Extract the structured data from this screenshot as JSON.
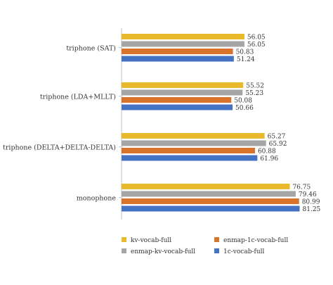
{
  "chart_data": {
    "type": "bar",
    "orientation": "horizontal",
    "categories": [
      "triphone (SAT)",
      "triphone (LDA+MLLT)",
      "triphone (DELTA+DELTA-DELTA)",
      "monophone"
    ],
    "series": [
      {
        "name": "kv-vocab-full",
        "color": "#e8b92a",
        "values": [
          56.05,
          55.52,
          65.27,
          76.75
        ]
      },
      {
        "name": "enmap-kv-vocab-full",
        "color": "#a5a5a5",
        "values": [
          56.05,
          55.23,
          65.92,
          79.46
        ]
      },
      {
        "name": "enmap-1c-vocab-full",
        "color": "#d9732b",
        "values": [
          50.83,
          50.08,
          60.88,
          80.99
        ]
      },
      {
        "name": "1c-vocab-full",
        "color": "#4472c4",
        "values": [
          51.24,
          50.66,
          61.96,
          81.25
        ]
      }
    ],
    "value_labels": [
      [
        "56.05",
        "56.05",
        "50.83",
        "51.24"
      ],
      [
        "55.52",
        "55.23",
        "50.08",
        "50.66"
      ],
      [
        "65.27",
        "65.92",
        "60.88",
        "61.96"
      ],
      [
        "76.75",
        "79.46",
        "80.99",
        "81.25"
      ]
    ],
    "xlim": [
      0,
      85
    ],
    "grid": false,
    "legend_position": "bottom"
  }
}
